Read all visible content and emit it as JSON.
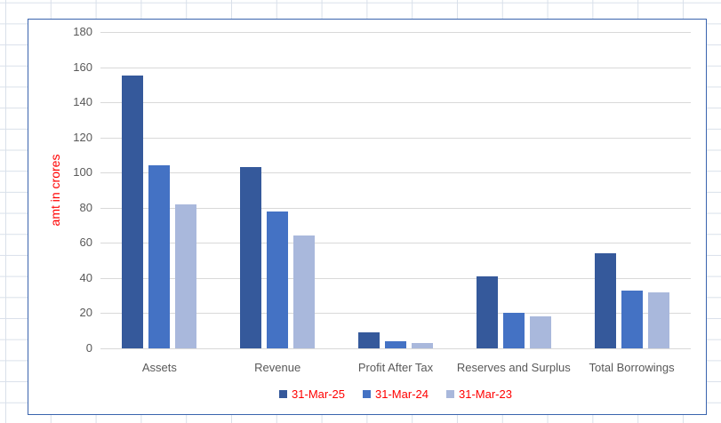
{
  "chart_data": {
    "type": "bar",
    "title": "",
    "categories": [
      "Assets",
      "Revenue",
      "Profit After Tax",
      "Reserves and Surplus",
      "Total Borrowings"
    ],
    "series": [
      {
        "name": "31-Mar-25",
        "color": "#35599B",
        "values": [
          155,
          103,
          9,
          41,
          54
        ]
      },
      {
        "name": "31-Mar-24",
        "color": "#4472C4",
        "values": [
          104,
          78,
          4,
          20,
          33
        ]
      },
      {
        "name": "31-Mar-23",
        "color": "#A9B8DC",
        "values": [
          82,
          64,
          3,
          18,
          32
        ]
      }
    ],
    "xlabel": "",
    "ylabel": "amt in crores",
    "ylim": [
      0,
      180
    ],
    "yticks": [
      0,
      20,
      40,
      60,
      80,
      100,
      120,
      140,
      160,
      180
    ],
    "grid": true,
    "legend_position": "bottom",
    "styles": {
      "axis_text_color": "#595959",
      "y_title_color": "#FF0000",
      "legend_text_color": "#FF0000",
      "plot_gridline_color": "#D9D9D9",
      "chart_border_color": "#3A64AE",
      "sheet_gridline_color": "#D9E0EA",
      "background_color": "#FFFFFF"
    }
  }
}
